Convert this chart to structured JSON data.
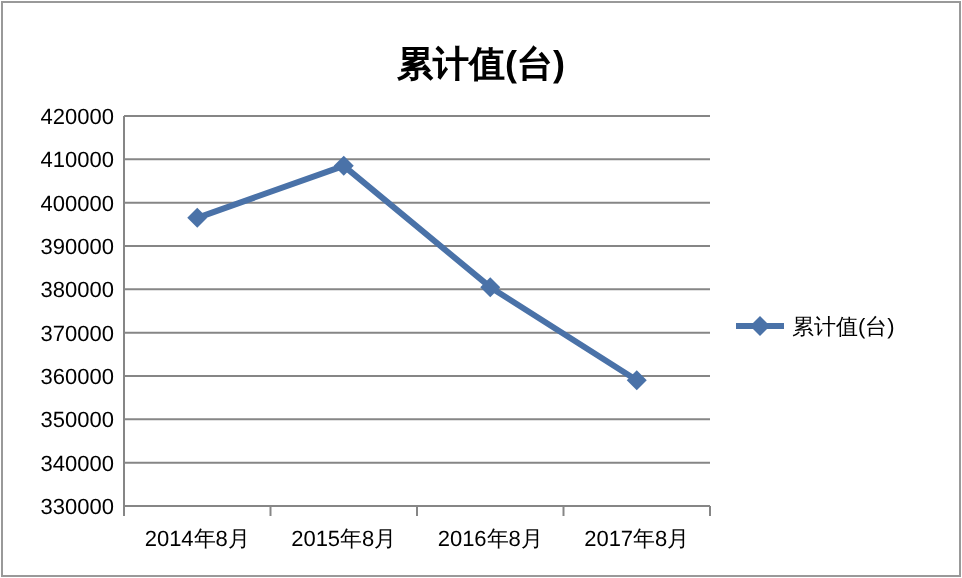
{
  "chart_data": {
    "type": "line",
    "title": "累计值(台)",
    "categories": [
      "2014年8月",
      "2015年8月",
      "2016年8月",
      "2017年8月"
    ],
    "series": [
      {
        "name": "累计值(台)",
        "color": "#4a72a8",
        "values": [
          396500,
          408500,
          380500,
          359000
        ]
      }
    ],
    "ylim": [
      330000,
      420000
    ],
    "yticks": [
      330000,
      340000,
      350000,
      360000,
      370000,
      380000,
      390000,
      400000,
      410000,
      420000
    ],
    "grid": "y",
    "legend": "right",
    "marker": "diamond",
    "line_style": "solid"
  }
}
